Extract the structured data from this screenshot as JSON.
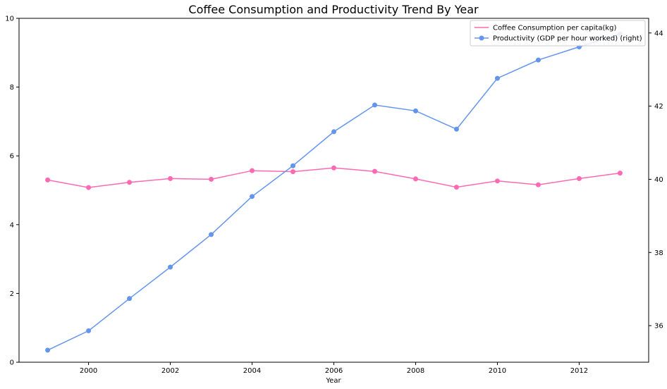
{
  "chart_data": {
    "type": "line",
    "title": "Coffee Consumption and Productivity Trend By Year",
    "xlabel": "Year",
    "ylabel_left": "",
    "ylabel_right": "",
    "x": [
      1999,
      2000,
      2001,
      2002,
      2003,
      2004,
      2005,
      2006,
      2007,
      2008,
      2009,
      2010,
      2011,
      2012,
      2013
    ],
    "xlim": [
      1998.3,
      2013.7
    ],
    "x_ticks": [
      2000,
      2002,
      2004,
      2006,
      2008,
      2010,
      2012
    ],
    "ylim_left": [
      0,
      10
    ],
    "y_ticks_left": [
      0,
      2,
      4,
      6,
      8,
      10
    ],
    "ylim_right": [
      35,
      44.4
    ],
    "y_ticks_right": [
      36,
      38,
      40,
      42,
      44
    ],
    "legend_position": "upper-right",
    "grid": false,
    "series": [
      {
        "name": "Coffee Consumption per capita(kg)",
        "axis": "left",
        "color": "#ff69b4",
        "marker_in_legend": false,
        "values": [
          5.3,
          5.08,
          5.23,
          5.34,
          5.32,
          5.57,
          5.54,
          5.65,
          5.55,
          5.33,
          5.09,
          5.27,
          5.16,
          5.34,
          5.5
        ]
      },
      {
        "name": "Productivity (GDP per hour worked) (right)",
        "axis": "right",
        "color": "#6495ed",
        "marker_in_legend": true,
        "values": [
          35.33,
          35.86,
          36.74,
          37.6,
          38.49,
          39.53,
          40.37,
          41.3,
          42.03,
          41.87,
          41.37,
          42.76,
          43.26,
          43.62,
          43.97
        ]
      }
    ]
  }
}
